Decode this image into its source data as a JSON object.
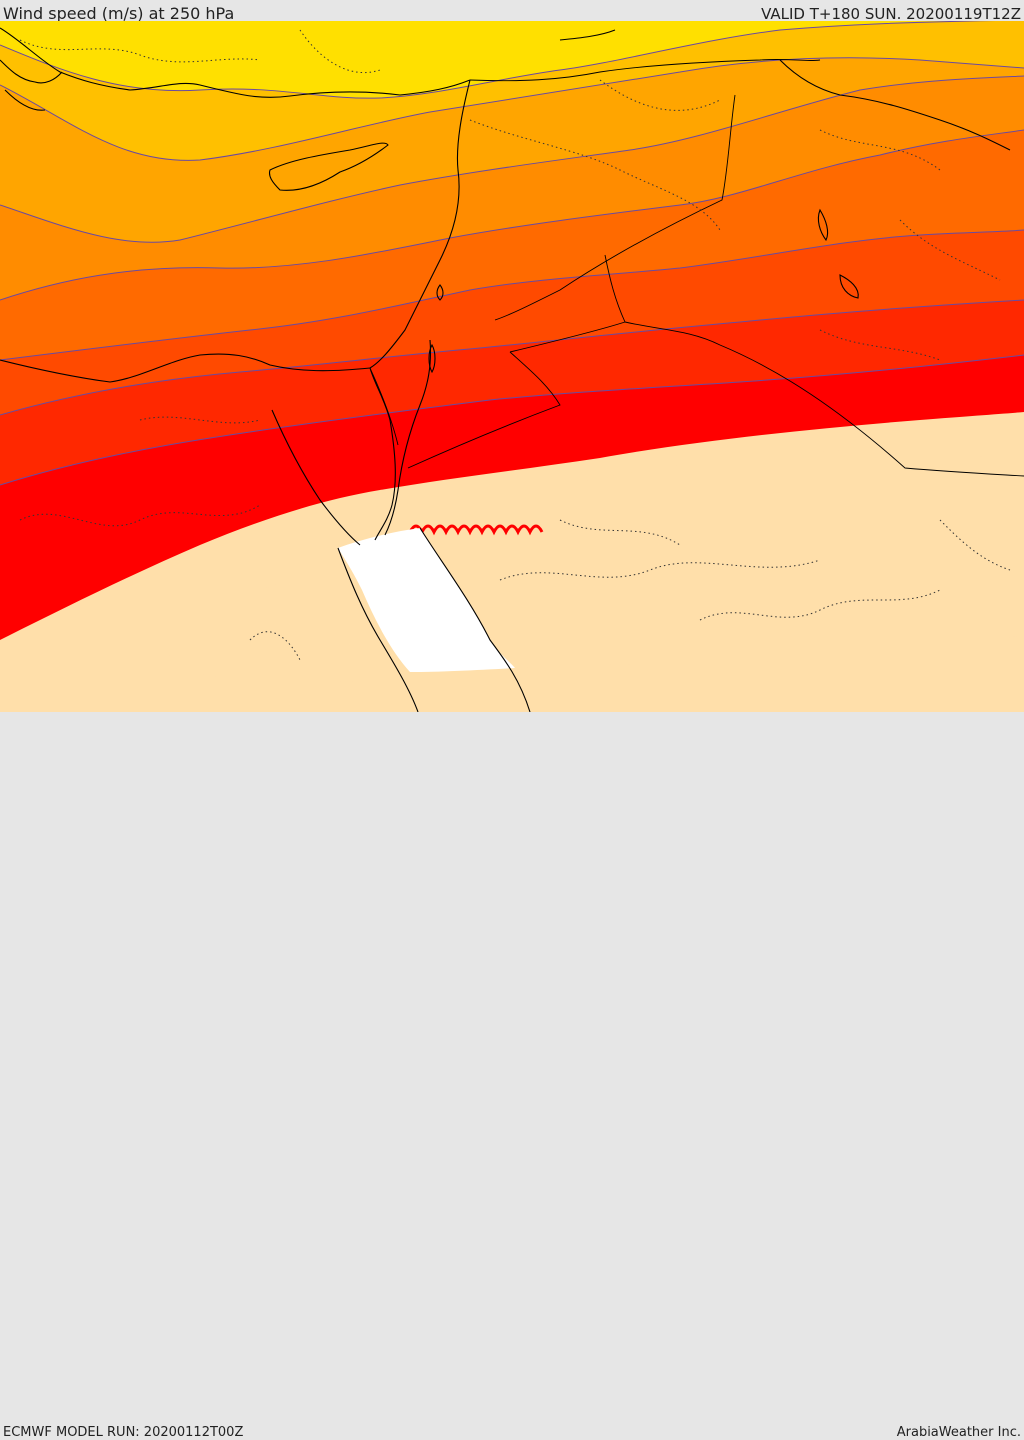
{
  "header": {
    "title": "Wind speed (m/s) at 250 hPa",
    "valid": "VALID T+180 SUN. 20200119T12Z"
  },
  "footer": {
    "model_run": "ECMWF MODEL RUN: 20200112T00Z",
    "credit": "ArabiaWeather Inc."
  },
  "map": {
    "field": "wind speed at 250 hPa",
    "colors": {
      "band_1": "#ffe000",
      "band_2": "#ffc000",
      "band_3": "#ffa500",
      "band_4": "#ff8c00",
      "band_5": "#ff6a00",
      "band_6": "#ff4a00",
      "band_7": "#ff2800",
      "band_8": "#ff0000",
      "band_9": "#ffdfaa",
      "band_10": "#ffffff",
      "contour_line": "#6a4aa0",
      "coastline": "#000000"
    }
  }
}
